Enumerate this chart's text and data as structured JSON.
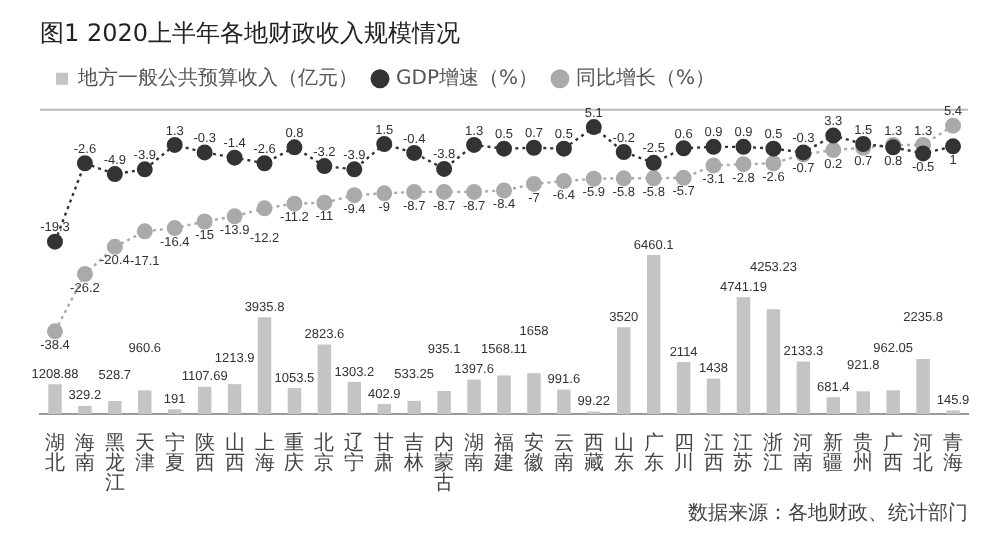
{
  "chart_data": {
    "type": "bar",
    "title": "图1 2020上半年各地财政收入规模情况",
    "annotations": [
      "数据来源：各地财政、统计部门"
    ],
    "categories": [
      "湖北",
      "海南",
      "黑龙江",
      "天津",
      "宁夏",
      "陕西",
      "山西",
      "上海",
      "重庆",
      "北京",
      "辽宁",
      "甘肃",
      "吉林",
      "内蒙古",
      "湖南",
      "福建",
      "安徽",
      "云南",
      "西藏",
      "山东",
      "广东",
      "四川",
      "江西",
      "江苏",
      "浙江",
      "河南",
      "新疆",
      "贵州",
      "广西",
      "河北",
      "青海"
    ],
    "series": [
      {
        "name": "地方一般公共预算收入（亿元）",
        "color": "#c4c4c4",
        "values": [
          1208.88,
          329.2,
          528.7,
          960.6,
          191,
          1107.69,
          1213.9,
          3935.8,
          1053.5,
          2823.6,
          1303.2,
          402.9,
          533.25,
          935.1,
          1397.6,
          1568.11,
          1658,
          991.6,
          99.22,
          3520,
          6460.1,
          2114,
          1438,
          4741.19,
          4253.23,
          2133.3,
          681.4,
          921.8,
          962.05,
          2235.8,
          145.9
        ]
      },
      {
        "name": "GDP增速（%）",
        "type": "line",
        "axis": "y2",
        "color": "#333333",
        "values": [
          -19.3,
          -2.6,
          -4.9,
          -3.9,
          1.3,
          -0.3,
          -1.4,
          -2.6,
          0.8,
          -3.2,
          -3.9,
          1.5,
          -0.4,
          -3.8,
          1.3,
          0.5,
          0.7,
          0.5,
          5.1,
          -0.2,
          -2.5,
          0.6,
          0.9,
          0.9,
          0.5,
          -0.3,
          3.3,
          1.5,
          0.8,
          -0.5,
          1
        ]
      },
      {
        "name": "同比增长（%）",
        "type": "line",
        "axis": "y2",
        "color": "#aaaaaa",
        "values": [
          -38.4,
          -26.2,
          -20.4,
          -17.1,
          -16.4,
          -15,
          -13.9,
          -12.2,
          -11.2,
          -11,
          -9.4,
          -9,
          -8.7,
          -8.7,
          -8.7,
          -8.4,
          -7,
          -6.4,
          -5.9,
          -5.8,
          -5.8,
          -5.7,
          -3.1,
          -2.8,
          -2.6,
          -0.7,
          0.2,
          0.7,
          1.3,
          1.3,
          5.4
        ]
      }
    ],
    "data_labels": true,
    "legend": "top",
    "marker": "circle",
    "line_style": "dotted",
    "ylim": [
      0,
      12400
    ],
    "y2lim": [
      -56,
      9
    ],
    "tick_labels": "x"
  }
}
